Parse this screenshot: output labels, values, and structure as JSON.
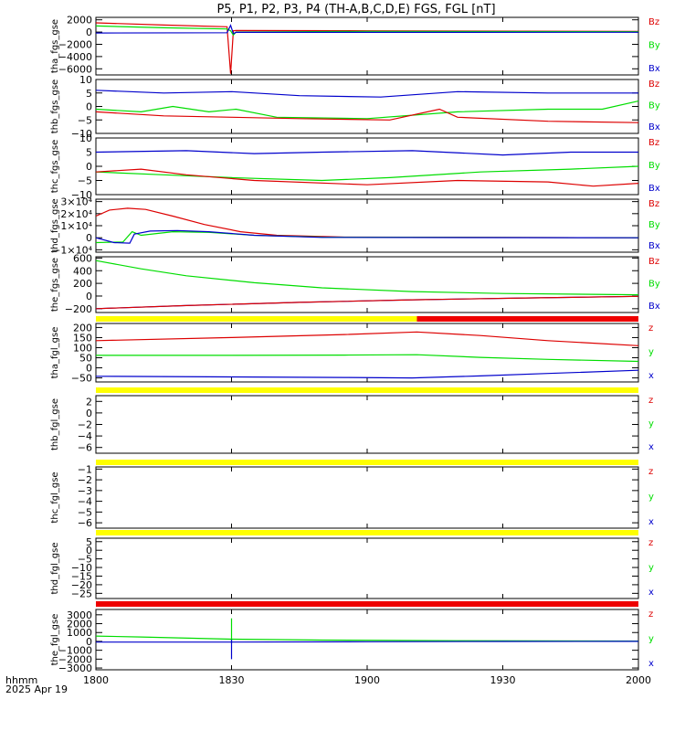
{
  "title": "P5, P1, P2, P3, P4 (TH-A,B,C,D,E) FGS, FGL [nT]",
  "time_label": "hhmm",
  "date_label": "2025 Apr 19",
  "colors": {
    "x": "#0000cc",
    "y": "#00dd00",
    "z": "#dd0000",
    "bar_yellow": "#ffff00",
    "bar_red": "#ee0000"
  },
  "chart_data": [
    {
      "type": "line",
      "ylabel": "tha_fgs_gse",
      "ylim": [
        -7000,
        2400
      ],
      "yticks": [
        2000,
        0,
        -2000,
        -4000,
        -6000
      ],
      "ytick_labels": [
        "2000",
        "0",
        "−2000",
        "−4000",
        "−6000"
      ],
      "legend": [
        "Bz",
        "By",
        "Bx"
      ],
      "series": [
        {
          "name": "Bz",
          "color": "z",
          "points": [
            [
              0,
              1500
            ],
            [
              15,
              1150
            ],
            [
              29,
              870
            ],
            [
              29.8,
              -6800
            ],
            [
              30.4,
              200
            ],
            [
              31,
              250
            ],
            [
              60,
              200
            ],
            [
              120,
              120
            ]
          ]
        },
        {
          "name": "By",
          "color": "y",
          "points": [
            [
              0,
              1000
            ],
            [
              15,
              700
            ],
            [
              29,
              500
            ],
            [
              29.8,
              200
            ],
            [
              30.4,
              -500
            ],
            [
              31,
              0
            ],
            [
              60,
              120
            ],
            [
              120,
              60
            ]
          ]
        },
        {
          "name": "Bx",
          "color": "x",
          "points": [
            [
              0,
              -150
            ],
            [
              29,
              -100
            ],
            [
              29.8,
              1100
            ],
            [
              30.4,
              -250
            ],
            [
              31,
              -50
            ],
            [
              120,
              -30
            ]
          ]
        }
      ]
    },
    {
      "type": "line",
      "ylabel": "thb_fgs_gse",
      "ylim": [
        -10,
        10
      ],
      "yticks": [
        10,
        5,
        0,
        -5,
        -10
      ],
      "ytick_labels": [
        "10",
        "5",
        "0",
        "−5",
        "−10"
      ],
      "legend": [
        "Bz",
        "By",
        "Bx"
      ],
      "series": [
        {
          "name": "Bx",
          "color": "x",
          "points": [
            [
              0,
              6
            ],
            [
              15,
              5
            ],
            [
              30,
              5.5
            ],
            [
              45,
              4
            ],
            [
              63,
              3.5
            ],
            [
              80,
              5.5
            ],
            [
              100,
              5
            ],
            [
              120,
              5
            ]
          ]
        },
        {
          "name": "By",
          "color": "y",
          "points": [
            [
              0,
              -1
            ],
            [
              10,
              -2
            ],
            [
              17,
              0
            ],
            [
              25,
              -2
            ],
            [
              31,
              -1
            ],
            [
              40,
              -4
            ],
            [
              60,
              -4.5
            ],
            [
              80,
              -2
            ],
            [
              100,
              -1
            ],
            [
              112,
              -1
            ],
            [
              120,
              2
            ]
          ]
        },
        {
          "name": "Bz",
          "color": "z",
          "points": [
            [
              0,
              -2
            ],
            [
              15,
              -3.5
            ],
            [
              30,
              -4
            ],
            [
              45,
              -4.5
            ],
            [
              65,
              -5
            ],
            [
              76,
              -1
            ],
            [
              80,
              -4
            ],
            [
              100,
              -5.5
            ],
            [
              120,
              -6
            ]
          ]
        }
      ]
    },
    {
      "type": "line",
      "ylabel": "thc_fgs_gse",
      "ylim": [
        -10,
        10
      ],
      "yticks": [
        10,
        5,
        0,
        -5,
        -10
      ],
      "ytick_labels": [
        "10",
        "5",
        "0",
        "−5",
        "−10"
      ],
      "legend": [
        "Bz",
        "By",
        "Bx"
      ],
      "series": [
        {
          "name": "Bx",
          "color": "x",
          "points": [
            [
              0,
              5
            ],
            [
              20,
              5.5
            ],
            [
              35,
              4.5
            ],
            [
              50,
              5
            ],
            [
              70,
              5.5
            ],
            [
              90,
              4
            ],
            [
              105,
              5
            ],
            [
              120,
              5
            ]
          ]
        },
        {
          "name": "By",
          "color": "y",
          "points": [
            [
              0,
              -2
            ],
            [
              15,
              -3
            ],
            [
              30,
              -4
            ],
            [
              50,
              -5
            ],
            [
              65,
              -4
            ],
            [
              85,
              -2
            ],
            [
              105,
              -1
            ],
            [
              120,
              0
            ]
          ]
        },
        {
          "name": "Bz",
          "color": "z",
          "points": [
            [
              0,
              -2
            ],
            [
              10,
              -1
            ],
            [
              20,
              -3
            ],
            [
              35,
              -5
            ],
            [
              60,
              -6.5
            ],
            [
              80,
              -5
            ],
            [
              100,
              -5.5
            ],
            [
              110,
              -7
            ],
            [
              120,
              -6
            ]
          ]
        }
      ]
    },
    {
      "type": "line",
      "ylabel": "thd_fgs_gse",
      "ylim": [
        -12000,
        32000
      ],
      "yticks": [
        30000,
        20000,
        10000,
        0,
        -10000
      ],
      "ytick_labels": [
        "3×10⁴",
        "2×10⁴",
        "1×10⁴",
        "0",
        "−1×10⁴"
      ],
      "legend": [
        "Bz",
        "By",
        "Bx"
      ],
      "series": [
        {
          "name": "Bz",
          "color": "z",
          "points": [
            [
              0,
              18000
            ],
            [
              3,
              23000
            ],
            [
              7,
              24500
            ],
            [
              11,
              23500
            ],
            [
              17,
              18000
            ],
            [
              24,
              11000
            ],
            [
              32,
              5000
            ],
            [
              40,
              2000
            ],
            [
              55,
              500
            ],
            [
              120,
              0
            ]
          ]
        },
        {
          "name": "By",
          "color": "y",
          "points": [
            [
              0,
              -4000
            ],
            [
              6,
              -3500
            ],
            [
              8,
              5000
            ],
            [
              10,
              2000
            ],
            [
              17,
              5000
            ],
            [
              25,
              4500
            ],
            [
              35,
              2000
            ],
            [
              50,
              500
            ],
            [
              120,
              0
            ]
          ]
        },
        {
          "name": "Bx",
          "color": "x",
          "points": [
            [
              0,
              0
            ],
            [
              4,
              -4000
            ],
            [
              7.5,
              -4500
            ],
            [
              8.5,
              3000
            ],
            [
              12,
              5500
            ],
            [
              18,
              6000
            ],
            [
              25,
              5000
            ],
            [
              35,
              2000
            ],
            [
              50,
              300
            ],
            [
              120,
              0
            ]
          ]
        }
      ]
    },
    {
      "type": "line",
      "ylabel": "the_fgs_gse",
      "ylim": [
        -260,
        620
      ],
      "yticks": [
        600,
        400,
        200,
        0,
        -200
      ],
      "ytick_labels": [
        "600",
        "400",
        "200",
        "0",
        "−200"
      ],
      "legend": [
        "Bz",
        "By",
        "Bx"
      ],
      "series": [
        {
          "name": "By",
          "color": "y",
          "points": [
            [
              0,
              560
            ],
            [
              10,
              430
            ],
            [
              20,
              320
            ],
            [
              35,
              210
            ],
            [
              50,
              130
            ],
            [
              70,
              70
            ],
            [
              90,
              40
            ],
            [
              120,
              20
            ]
          ]
        },
        {
          "name": "Bx",
          "color": "x",
          "points": [
            [
              0,
              -200
            ],
            [
              20,
              -150
            ],
            [
              45,
              -100
            ],
            [
              70,
              -60
            ],
            [
              95,
              -30
            ],
            [
              120,
              -5
            ]
          ]
        },
        {
          "name": "Bz",
          "color": "z",
          "points": [
            [
              0,
              -200
            ],
            [
              20,
              -150
            ],
            [
              45,
              -100
            ],
            [
              70,
              -60
            ],
            [
              95,
              -30
            ],
            [
              120,
              -5
            ]
          ]
        }
      ]
    },
    {
      "type": "line",
      "ylabel": "tha_fgl_gse",
      "ylim": [
        -70,
        220
      ],
      "yticks": [
        200,
        150,
        100,
        50,
        0,
        -50
      ],
      "ytick_labels": [
        "200",
        "150",
        "100",
        "50",
        "0",
        "−50"
      ],
      "legend": [
        "z",
        "y",
        "x"
      ],
      "series": [
        {
          "name": "z",
          "color": "z",
          "points": [
            [
              0,
              135
            ],
            [
              30,
              150
            ],
            [
              55,
              165
            ],
            [
              71,
              178
            ],
            [
              85,
              160
            ],
            [
              100,
              135
            ],
            [
              120,
              110
            ]
          ]
        },
        {
          "name": "y",
          "color": "y",
          "points": [
            [
              0,
              62
            ],
            [
              30,
              62
            ],
            [
              55,
              63
            ],
            [
              71,
              65
            ],
            [
              85,
              52
            ],
            [
              100,
              42
            ],
            [
              120,
              32
            ]
          ]
        },
        {
          "name": "x",
          "color": "x",
          "points": [
            [
              0,
              -42
            ],
            [
              30,
              -45
            ],
            [
              55,
              -48
            ],
            [
              70,
              -50
            ],
            [
              85,
              -40
            ],
            [
              100,
              -28
            ],
            [
              120,
              -12
            ]
          ]
        }
      ]
    },
    {
      "type": "line",
      "ylabel": "thb_fgl_gse",
      "ylim": [
        -7,
        3
      ],
      "yticks": [
        2,
        0,
        -2,
        -4,
        -6
      ],
      "ytick_labels": [
        "2",
        "0",
        "−2",
        "−4",
        "−6"
      ],
      "legend": [
        "z",
        "y",
        "x"
      ],
      "series": []
    },
    {
      "type": "line",
      "ylabel": "thc_fgl_gse",
      "ylim": [
        -6.5,
        -0.8
      ],
      "yticks": [
        -1,
        -2,
        -3,
        -4,
        -5,
        -6
      ],
      "ytick_labels": [
        "−1",
        "−2",
        "−3",
        "−4",
        "−5",
        "−6"
      ],
      "legend": [
        "z",
        "y",
        "x"
      ],
      "series": []
    },
    {
      "type": "line",
      "ylabel": "thd_fgl_gse",
      "ylim": [
        -28,
        7
      ],
      "yticks": [
        5,
        0,
        -5,
        -10,
        -15,
        -20,
        -25
      ],
      "ytick_labels": [
        "5",
        "0",
        "−5",
        "−10",
        "−15",
        "−20",
        "−25"
      ],
      "legend": [
        "z",
        "y",
        "x"
      ],
      "series": []
    },
    {
      "type": "line",
      "ylabel": "the_fgl_gse",
      "ylim": [
        -3200,
        3600
      ],
      "yticks": [
        3000,
        2000,
        1000,
        0,
        -1000,
        -2000,
        -3000
      ],
      "ytick_labels": [
        "3000",
        "2000",
        "1000",
        "0",
        "−1000",
        "−2000",
        "−3000"
      ],
      "legend": [
        "z",
        "y",
        "x"
      ],
      "series": [
        {
          "name": "y",
          "color": "y",
          "points": [
            [
              0,
              600
            ],
            [
              10,
              500
            ],
            [
              30,
              250
            ],
            [
              50,
              150
            ],
            [
              80,
              80
            ],
            [
              120,
              30
            ]
          ]
        },
        {
          "name": "y",
          "color": "y",
          "points": [
            [
              30,
              -200
            ],
            [
              30,
              2600
            ]
          ]
        },
        {
          "name": "x",
          "color": "x",
          "points": [
            [
              0,
              -80
            ],
            [
              30,
              -80
            ],
            [
              60,
              -40
            ],
            [
              90,
              -10
            ],
            [
              120,
              0
            ]
          ]
        },
        {
          "name": "x",
          "color": "x",
          "points": [
            [
              30,
              -2000
            ],
            [
              30,
              200
            ]
          ]
        }
      ]
    }
  ],
  "status_bars": [
    {
      "after_panel": 4,
      "segments": [
        [
          0,
          71,
          "bar_yellow"
        ],
        [
          71,
          120,
          "bar_red"
        ]
      ]
    },
    {
      "after_panel": 5,
      "segments": [
        [
          0,
          120,
          "bar_yellow"
        ]
      ]
    },
    {
      "after_panel": 6,
      "segments": [
        [
          0,
          120,
          "bar_yellow"
        ]
      ]
    },
    {
      "after_panel": 7,
      "segments": [
        [
          0,
          120,
          "bar_yellow"
        ]
      ]
    },
    {
      "after_panel": 8,
      "segments": [
        [
          0,
          120,
          "bar_red"
        ]
      ]
    }
  ],
  "x_axis": {
    "minutes": [
      0,
      30,
      60,
      90,
      120
    ],
    "labels": [
      "1800",
      "1830",
      "1900",
      "1930",
      "2000"
    ]
  }
}
